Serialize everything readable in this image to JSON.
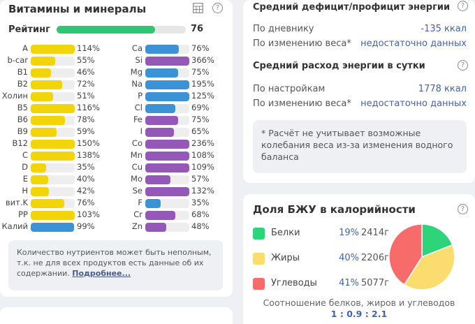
{
  "vitamins": {
    "title": "Витамины и минералы",
    "rating_label": "Рейтинг",
    "rating_value": "76",
    "rating_fraction": 0.76,
    "colors": {
      "yellow": "#f2d509",
      "blue": "#3b93d6",
      "purple": "#9358b8",
      "green": "#2ec672"
    },
    "left_column": [
      {
        "name": "A",
        "pct": "114%",
        "fill": 1.0,
        "color": "yellow"
      },
      {
        "name": "b-car",
        "pct": "55%",
        "fill": 0.55,
        "color": "yellow"
      },
      {
        "name": "B1",
        "pct": "46%",
        "fill": 0.46,
        "color": "yellow"
      },
      {
        "name": "B2",
        "pct": "72%",
        "fill": 0.72,
        "color": "yellow"
      },
      {
        "name": "Холин",
        "pct": "51%",
        "fill": 0.51,
        "color": "yellow"
      },
      {
        "name": "B5",
        "pct": "116%",
        "fill": 1.0,
        "color": "yellow"
      },
      {
        "name": "B6",
        "pct": "78%",
        "fill": 0.78,
        "color": "yellow"
      },
      {
        "name": "B9",
        "pct": "59%",
        "fill": 0.59,
        "color": "yellow"
      },
      {
        "name": "B12",
        "pct": "150%",
        "fill": 1.0,
        "color": "yellow"
      },
      {
        "name": "C",
        "pct": "138%",
        "fill": 1.0,
        "color": "yellow"
      },
      {
        "name": "D",
        "pct": "35%",
        "fill": 0.35,
        "color": "yellow"
      },
      {
        "name": "E",
        "pct": "40%",
        "fill": 0.4,
        "color": "yellow"
      },
      {
        "name": "H",
        "pct": "42%",
        "fill": 0.42,
        "color": "yellow"
      },
      {
        "name": "вит.K",
        "pct": "76%",
        "fill": 0.76,
        "color": "yellow"
      },
      {
        "name": "PP",
        "pct": "103%",
        "fill": 1.0,
        "color": "yellow"
      },
      {
        "name": "Калий",
        "pct": "99%",
        "fill": 0.99,
        "color": "blue"
      }
    ],
    "right_column": [
      {
        "name": "Ca",
        "pct": "76%",
        "fill": 0.76,
        "color": "blue"
      },
      {
        "name": "Si",
        "pct": "366%",
        "fill": 1.0,
        "color": "purple"
      },
      {
        "name": "Mg",
        "pct": "75%",
        "fill": 0.75,
        "color": "blue"
      },
      {
        "name": "Na",
        "pct": "195%",
        "fill": 1.0,
        "color": "blue"
      },
      {
        "name": "P",
        "pct": "125%",
        "fill": 1.0,
        "color": "blue"
      },
      {
        "name": "Cl",
        "pct": "69%",
        "fill": 0.69,
        "color": "blue"
      },
      {
        "name": "Fe",
        "pct": "75%",
        "fill": 0.75,
        "color": "purple"
      },
      {
        "name": "I",
        "pct": "65%",
        "fill": 0.65,
        "color": "purple"
      },
      {
        "name": "Co",
        "pct": "236%",
        "fill": 1.0,
        "color": "purple"
      },
      {
        "name": "Mn",
        "pct": "108%",
        "fill": 1.0,
        "color": "purple"
      },
      {
        "name": "Cu",
        "pct": "109%",
        "fill": 1.0,
        "color": "purple"
      },
      {
        "name": "Mo",
        "pct": "57%",
        "fill": 0.57,
        "color": "purple"
      },
      {
        "name": "Se",
        "pct": "132%",
        "fill": 1.0,
        "color": "purple"
      },
      {
        "name": "F",
        "pct": "35%",
        "fill": 0.35,
        "color": "blue"
      },
      {
        "name": "Cr",
        "pct": "68%",
        "fill": 0.68,
        "color": "purple"
      },
      {
        "name": "Zn",
        "pct": "48%",
        "fill": 0.48,
        "color": "purple"
      }
    ],
    "note_text": "Количество нутриентов может быть неполным, т.к. не для всех продуктов есть данные об их содержании.",
    "note_link": "Подробнее..."
  },
  "energy": {
    "deficit_title": "Средний дефицит/профицит энергии",
    "deficit_rows": [
      {
        "label": "По дневнику",
        "value": "-135 ккал"
      },
      {
        "label": "По изменению веса*",
        "value": "недостаточно данных"
      }
    ],
    "expense_title": "Средний расход энергии в сутки",
    "expense_rows": [
      {
        "label": "По настройкам",
        "value": "1778 ккал"
      },
      {
        "label": "По изменению веса*",
        "value": "недостаточно данных"
      }
    ],
    "note": "* Расчёт не учитывает возможные колебания веса из-за изменения водного баланса"
  },
  "macros": {
    "title": "Доля БЖУ в калорийности",
    "items": [
      {
        "name": "Белки",
        "pct": "19%",
        "grams": "2414г",
        "fraction": 0.19,
        "color": "#2ed47a"
      },
      {
        "name": "Жиры",
        "pct": "40%",
        "grams": "2206г",
        "fraction": 0.4,
        "color": "#fbdc6e"
      },
      {
        "name": "Углеводы",
        "pct": "41%",
        "grams": "5077г",
        "fraction": 0.41,
        "color": "#f86b6b"
      }
    ],
    "caption": "Соотношение белков, жиров и углеводов",
    "ratio": "1 : 0.9 : 2.1"
  },
  "icons": {
    "help": "?"
  }
}
